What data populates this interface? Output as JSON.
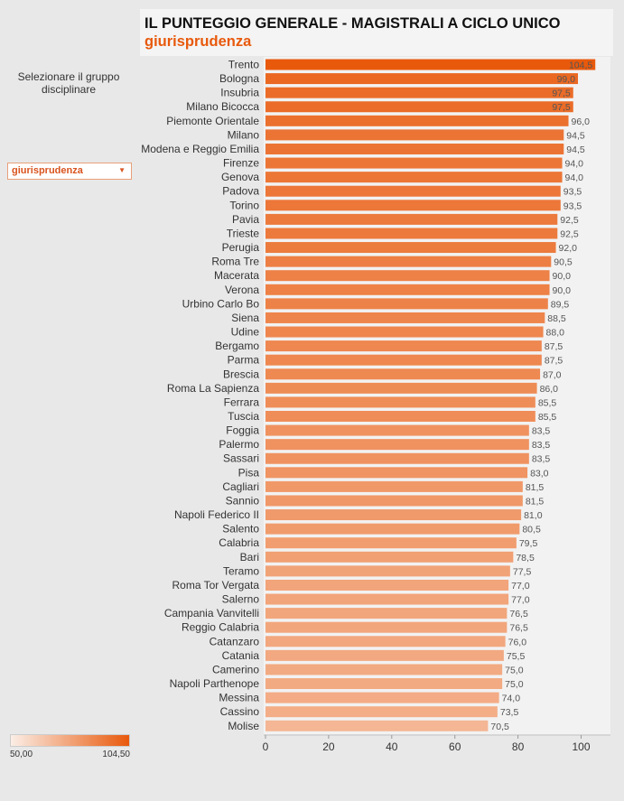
{
  "header": {
    "title": "IL PUNTEGGIO GENERALE - MAGISTRALI A CICLO UNICO",
    "subtitle": "giurisprudenza"
  },
  "filter": {
    "label": "Selezionare il gruppo disciplinare",
    "selected": "giurisprudenza"
  },
  "legend": {
    "min_label": "50,00",
    "max_label": "104,50",
    "color_min": "#fbeee6",
    "color_max": "#e8590c"
  },
  "chart_data": {
    "type": "bar",
    "orientation": "horizontal",
    "categories": [
      "Trento",
      "Bologna",
      "Insubria",
      "Milano Bicocca",
      "Piemonte Orientale",
      "Milano",
      "Modena e Reggio Emilia",
      "Firenze",
      "Genova",
      "Padova",
      "Torino",
      "Pavia",
      "Trieste",
      "Perugia",
      "Roma Tre",
      "Macerata",
      "Verona",
      "Urbino Carlo Bo",
      "Siena",
      "Udine",
      "Bergamo",
      "Parma",
      "Brescia",
      "Roma La Sapienza",
      "Ferrara",
      "Tuscia",
      "Foggia",
      "Palermo",
      "Sassari",
      "Pisa",
      "Cagliari",
      "Sannio",
      "Napoli Federico II",
      "Salento",
      "Calabria",
      "Bari",
      "Teramo",
      "Roma Tor Vergata",
      "Salerno",
      "Campania Vanvitelli",
      "Reggio Calabria",
      "Catanzaro",
      "Catania",
      "Camerino",
      "Napoli Parthenope",
      "Messina",
      "Cassino",
      "Molise"
    ],
    "values": [
      104.5,
      99.0,
      97.5,
      97.5,
      96.0,
      94.5,
      94.5,
      94.0,
      94.0,
      93.5,
      93.5,
      92.5,
      92.5,
      92.0,
      90.5,
      90.0,
      90.0,
      89.5,
      88.5,
      88.0,
      87.5,
      87.5,
      87.0,
      86.0,
      85.5,
      85.5,
      83.5,
      83.5,
      83.5,
      83.0,
      81.5,
      81.5,
      81.0,
      80.5,
      79.5,
      78.5,
      77.5,
      77.0,
      77.0,
      76.5,
      76.5,
      76.0,
      75.5,
      75.0,
      75.0,
      74.0,
      73.5,
      70.5
    ],
    "value_labels": [
      "104,5",
      "99,0",
      "97,5",
      "97,5",
      "96,0",
      "94,5",
      "94,5",
      "94,0",
      "94,0",
      "93,5",
      "93,5",
      "92,5",
      "92,5",
      "92,0",
      "90,5",
      "90,0",
      "90,0",
      "89,5",
      "88,5",
      "88,0",
      "87,5",
      "87,5",
      "87,0",
      "86,0",
      "85,5",
      "85,5",
      "83,5",
      "83,5",
      "83,5",
      "83,0",
      "81,5",
      "81,5",
      "81,0",
      "80,5",
      "79,5",
      "78,5",
      "77,5",
      "77,0",
      "77,0",
      "76,5",
      "76,5",
      "76,0",
      "75,5",
      "75,0",
      "75,0",
      "74,0",
      "73,5",
      "70,5"
    ],
    "xlim": [
      0,
      110
    ],
    "xticks": [
      0,
      20,
      40,
      60,
      80,
      100
    ],
    "color_scale": [
      50.0,
      104.5
    ],
    "grid": false
  }
}
